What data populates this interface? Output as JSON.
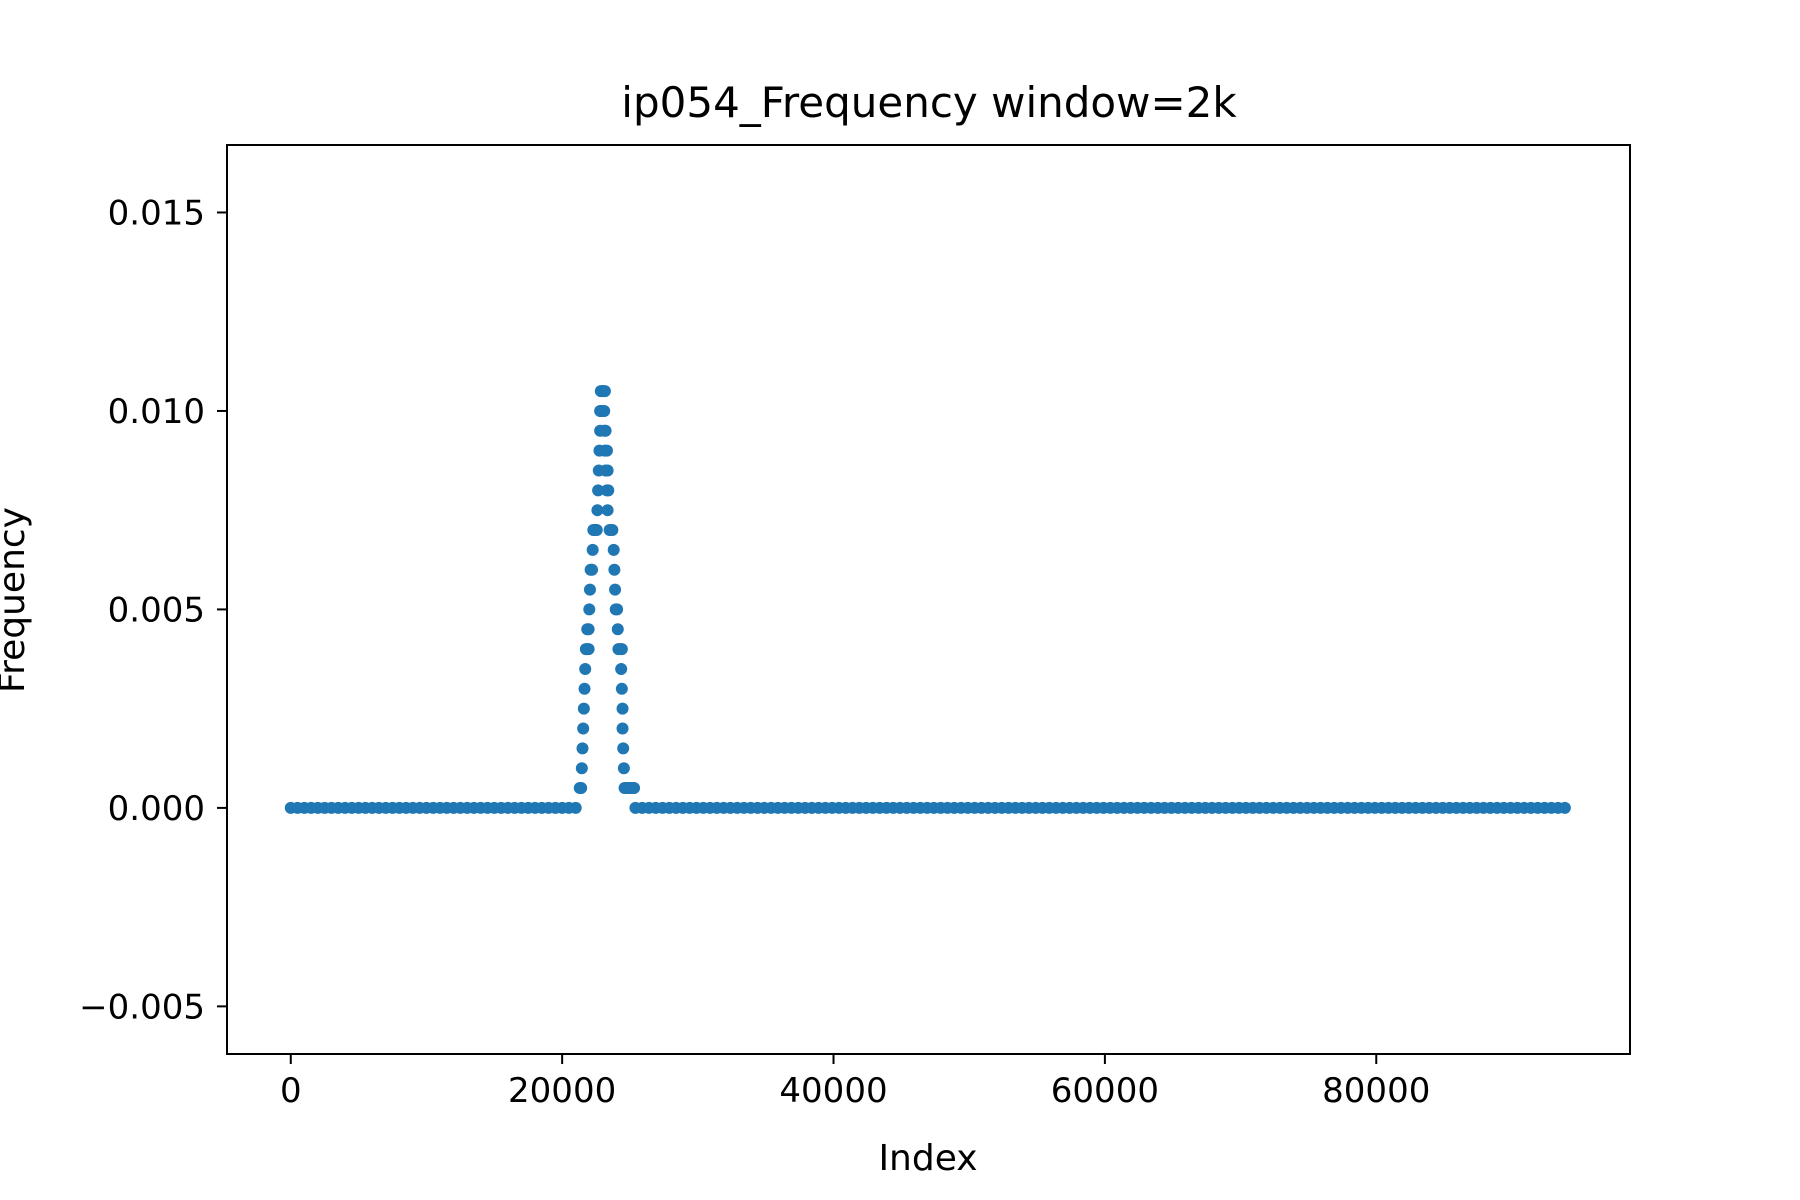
{
  "chart_data": {
    "type": "scatter",
    "title": "ip054_Frequency window=2k",
    "xlabel": "Index",
    "ylabel": "Frequency",
    "xlim": [
      -4700,
      98700
    ],
    "ylim": [
      -0.0062,
      0.0167
    ],
    "x_ticks": [
      0,
      20000,
      40000,
      60000,
      80000
    ],
    "x_tick_labels": [
      "0",
      "20000",
      "40000",
      "60000",
      "80000"
    ],
    "y_ticks": [
      -0.005,
      0.0,
      0.005,
      0.01,
      0.015
    ],
    "y_tick_labels": [
      "−0.005",
      "0.000",
      "0.005",
      "0.010",
      "0.015"
    ],
    "grid": false,
    "marker_color": "#1f77b4",
    "series": [
      {
        "baseline_segments": [
          {
            "x_start": 0,
            "x_end": 21300,
            "step": 500,
            "y": 0.0
          },
          {
            "x_start": 25400,
            "x_end": 94000,
            "step": 500,
            "y": 0.0
          }
        ],
        "peak_points": [
          {
            "x": 21300,
            "y": 0.0005
          },
          {
            "x": 21400,
            "y": 0.0005
          },
          {
            "x": 21450,
            "y": 0.001
          },
          {
            "x": 21500,
            "y": 0.0015
          },
          {
            "x": 21550,
            "y": 0.002
          },
          {
            "x": 21600,
            "y": 0.0025
          },
          {
            "x": 21650,
            "y": 0.003
          },
          {
            "x": 21700,
            "y": 0.0035
          },
          {
            "x": 21750,
            "y": 0.004
          },
          {
            "x": 21850,
            "y": 0.004
          },
          {
            "x": 21950,
            "y": 0.004
          },
          {
            "x": 21850,
            "y": 0.0045
          },
          {
            "x": 21950,
            "y": 0.0045
          },
          {
            "x": 22000,
            "y": 0.005
          },
          {
            "x": 22050,
            "y": 0.0055
          },
          {
            "x": 22100,
            "y": 0.006
          },
          {
            "x": 22200,
            "y": 0.006
          },
          {
            "x": 22250,
            "y": 0.0065
          },
          {
            "x": 22300,
            "y": 0.007
          },
          {
            "x": 22450,
            "y": 0.007
          },
          {
            "x": 22550,
            "y": 0.007
          },
          {
            "x": 22600,
            "y": 0.0075
          },
          {
            "x": 22650,
            "y": 0.008
          },
          {
            "x": 22700,
            "y": 0.0085
          },
          {
            "x": 22750,
            "y": 0.009
          },
          {
            "x": 22800,
            "y": 0.0095
          },
          {
            "x": 22800,
            "y": 0.01
          },
          {
            "x": 22900,
            "y": 0.01
          },
          {
            "x": 22850,
            "y": 0.0105
          },
          {
            "x": 22950,
            "y": 0.0105
          },
          {
            "x": 23050,
            "y": 0.0105
          },
          {
            "x": 23150,
            "y": 0.0105
          },
          {
            "x": 23100,
            "y": 0.01
          },
          {
            "x": 23200,
            "y": 0.0095
          },
          {
            "x": 23100,
            "y": 0.0095
          },
          {
            "x": 23150,
            "y": 0.009
          },
          {
            "x": 23300,
            "y": 0.009
          },
          {
            "x": 23200,
            "y": 0.0085
          },
          {
            "x": 23350,
            "y": 0.0085
          },
          {
            "x": 23300,
            "y": 0.008
          },
          {
            "x": 23400,
            "y": 0.008
          },
          {
            "x": 23350,
            "y": 0.0075
          },
          {
            "x": 23500,
            "y": 0.007
          },
          {
            "x": 23700,
            "y": 0.007
          },
          {
            "x": 23800,
            "y": 0.0065
          },
          {
            "x": 23850,
            "y": 0.006
          },
          {
            "x": 23900,
            "y": 0.0055
          },
          {
            "x": 23950,
            "y": 0.005
          },
          {
            "x": 24050,
            "y": 0.005
          },
          {
            "x": 24100,
            "y": 0.0045
          },
          {
            "x": 24150,
            "y": 0.004
          },
          {
            "x": 24300,
            "y": 0.004
          },
          {
            "x": 24400,
            "y": 0.004
          },
          {
            "x": 24350,
            "y": 0.0035
          },
          {
            "x": 24400,
            "y": 0.003
          },
          {
            "x": 24450,
            "y": 0.0025
          },
          {
            "x": 24450,
            "y": 0.002
          },
          {
            "x": 24500,
            "y": 0.0015
          },
          {
            "x": 24550,
            "y": 0.001
          },
          {
            "x": 24600,
            "y": 0.0005
          },
          {
            "x": 24750,
            "y": 0.0005
          },
          {
            "x": 24900,
            "y": 0.0005
          },
          {
            "x": 25050,
            "y": 0.0005
          },
          {
            "x": 25200,
            "y": 0.0005
          },
          {
            "x": 25300,
            "y": 0.0005
          }
        ]
      }
    ]
  }
}
